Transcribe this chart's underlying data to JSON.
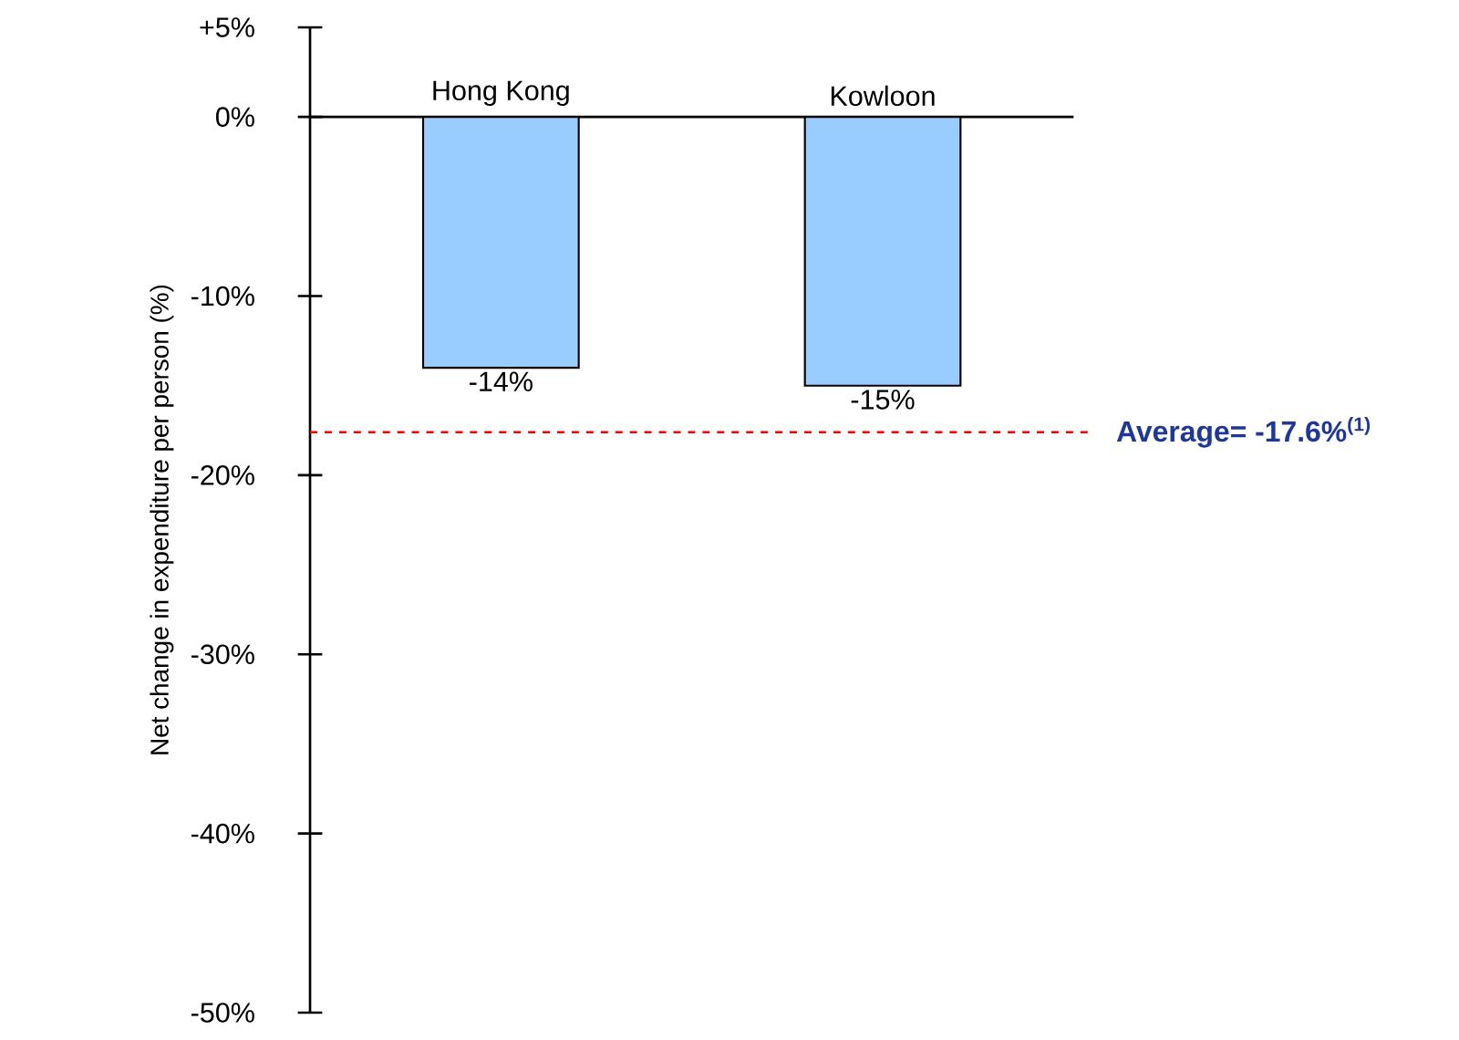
{
  "chart_data": {
    "type": "bar",
    "ylabel": "Net change in expenditure per person (%)",
    "categories": [
      "Hong Kong",
      "Kowloon"
    ],
    "values": [
      -14,
      -15
    ],
    "value_labels": [
      "-14%",
      "-15%"
    ],
    "color": "#99ccff",
    "ylim": [
      -50,
      5
    ],
    "yticks": [
      {
        "value": 5,
        "label": "+5%"
      },
      {
        "value": 0,
        "label": "0%"
      },
      {
        "value": -10,
        "label": "-10%"
      },
      {
        "value": -20,
        "label": "-20%"
      },
      {
        "value": -30,
        "label": "-30%"
      },
      {
        "value": -40,
        "label": "-40%"
      },
      {
        "value": -50,
        "label": "-50%"
      }
    ],
    "ref_lines": [
      {
        "axis": "y",
        "value": -17.6,
        "label": "Average= -17.6%$^{(1)}$",
        "color": "#ff0000",
        "line_style": "dashed"
      }
    ]
  }
}
